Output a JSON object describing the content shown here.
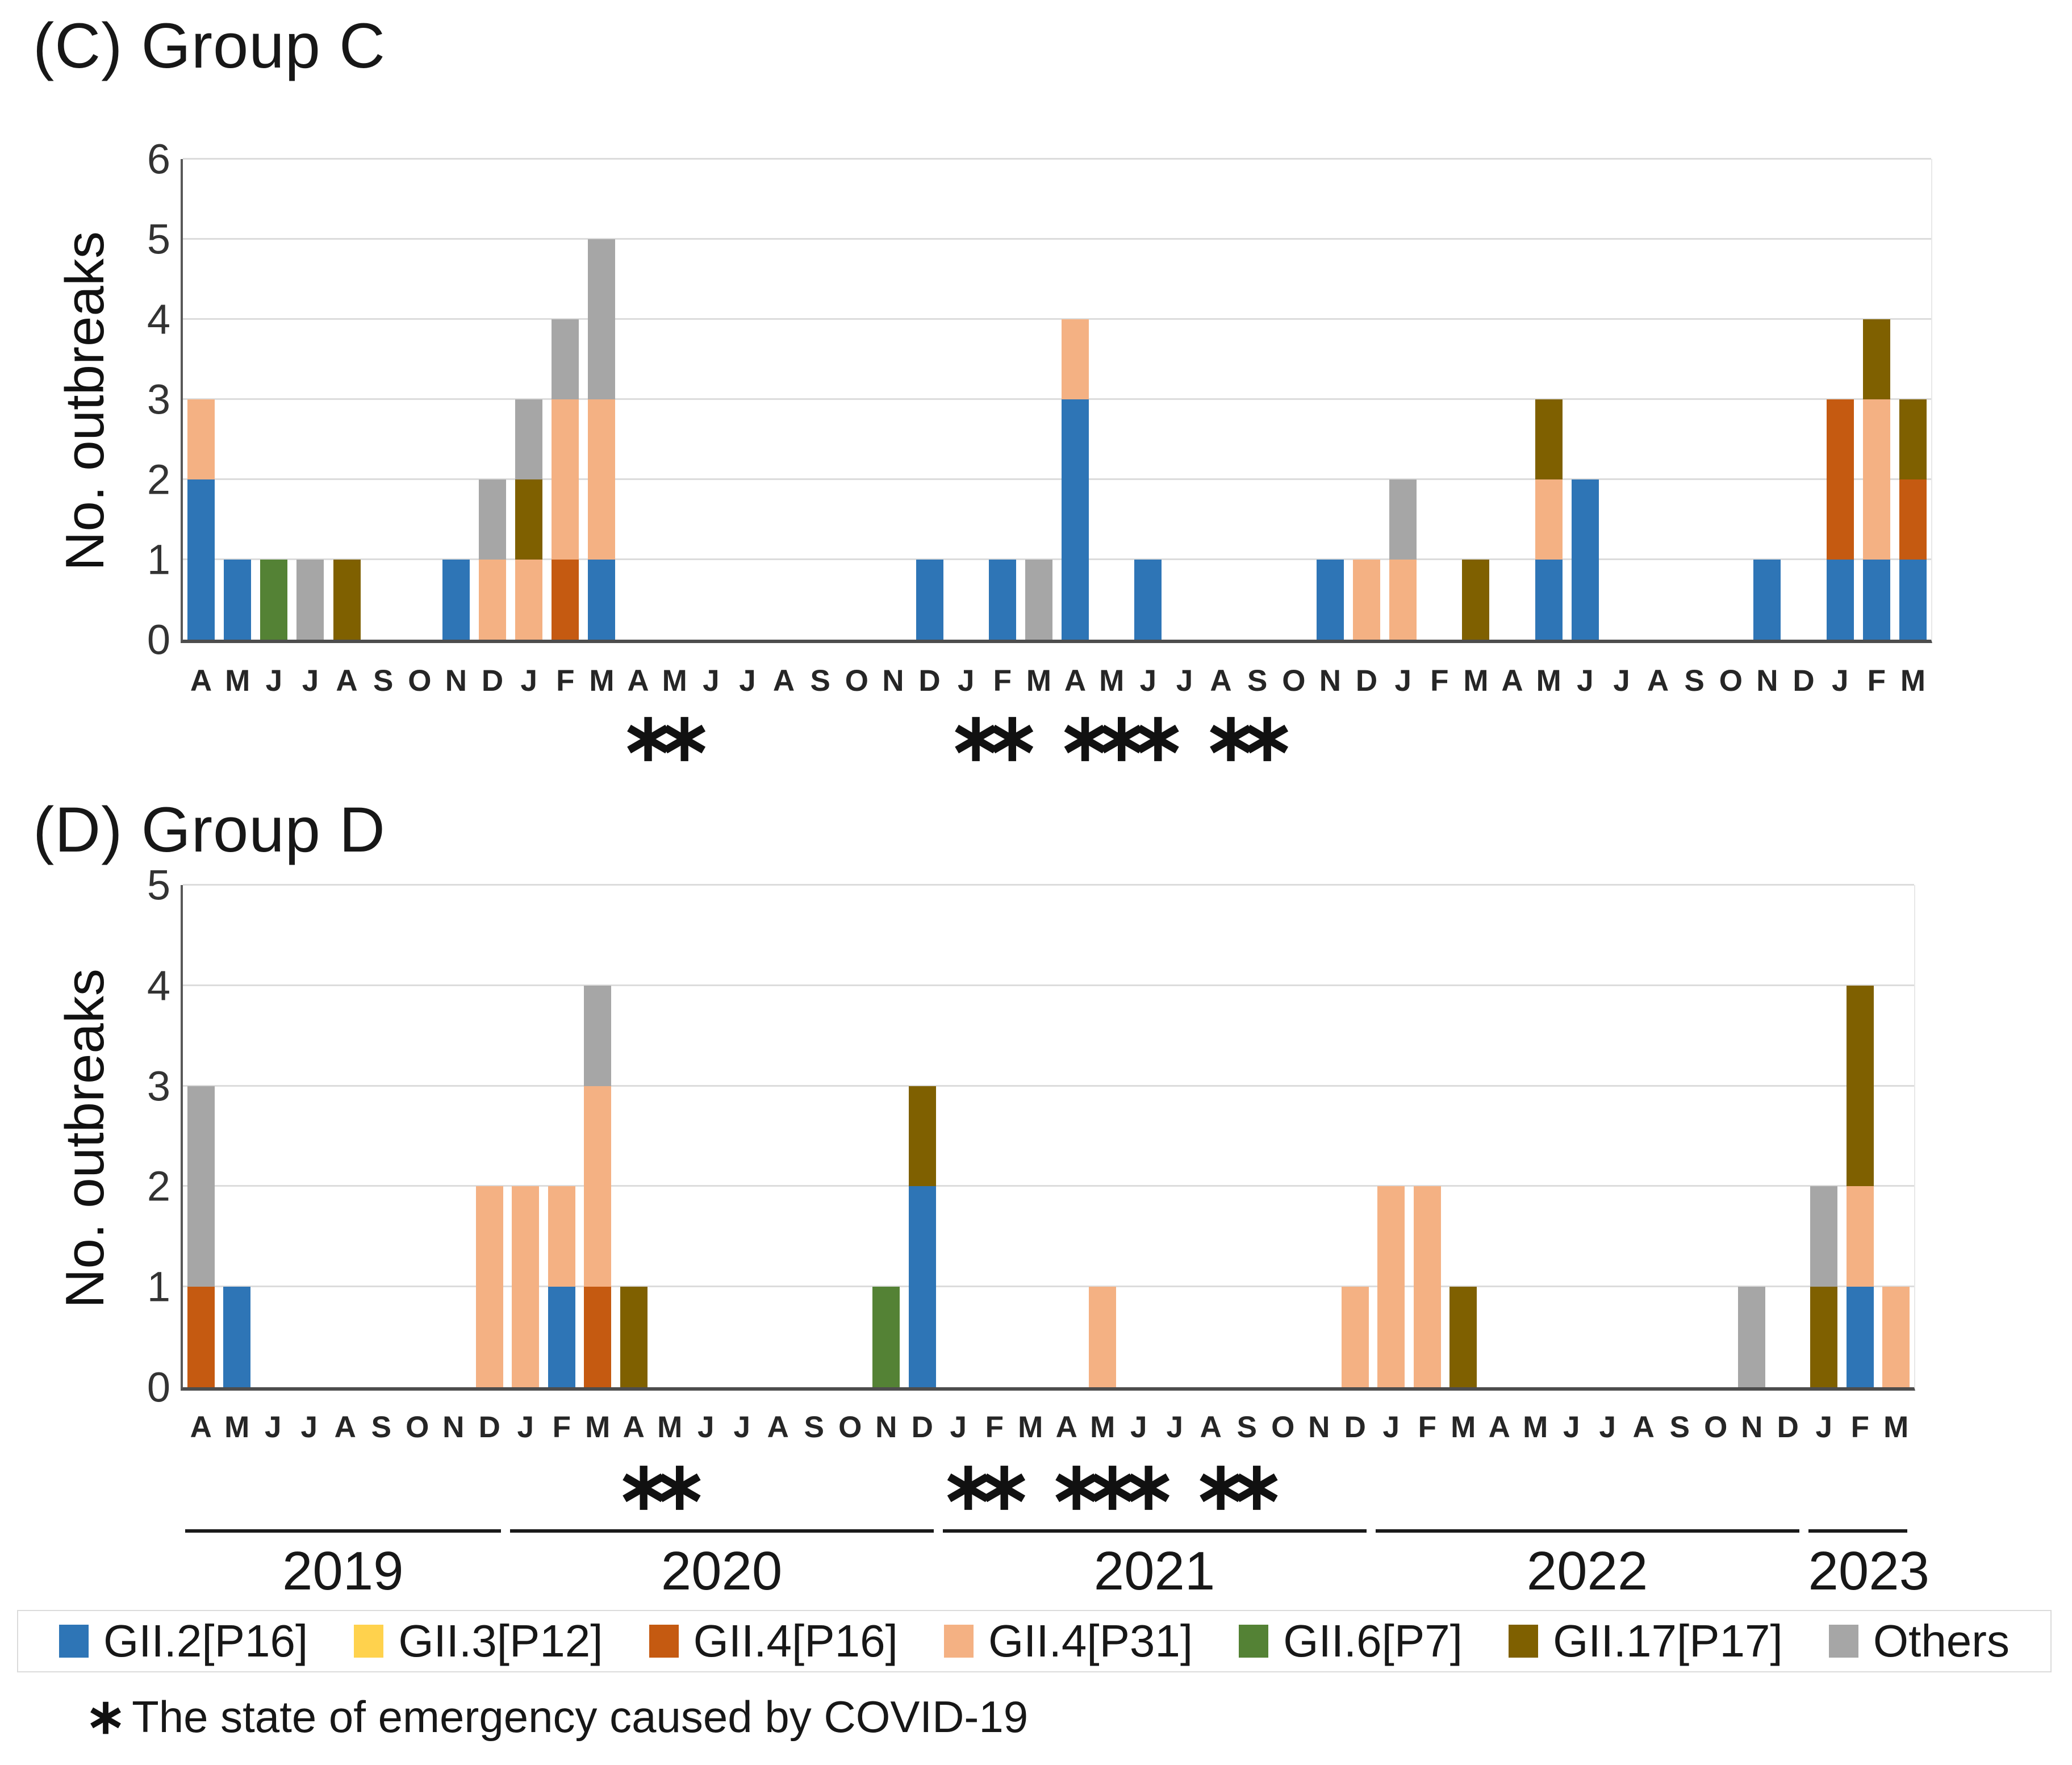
{
  "figure": {
    "background": "#FFFFFF"
  },
  "asterisk_char": "∗",
  "chart_data": [
    {
      "type": "bar",
      "stacked": true,
      "title": "(C) Group C",
      "ylabel": "No. outbreaks",
      "ylim": [
        0,
        6
      ],
      "yticks": [
        0,
        1,
        2,
        3,
        4,
        5,
        6
      ],
      "grid": true,
      "legend_position": "bottom-shared",
      "categories": [
        "A",
        "M",
        "J",
        "J",
        "A",
        "S",
        "O",
        "N",
        "D",
        "J",
        "F",
        "M",
        "A",
        "M",
        "J",
        "J",
        "A",
        "S",
        "O",
        "N",
        "D",
        "J",
        "F",
        "M",
        "A",
        "M",
        "J",
        "J",
        "A",
        "S",
        "O",
        "N",
        "D",
        "J",
        "F",
        "M",
        "A",
        "M",
        "J",
        "J",
        "A",
        "S",
        "O",
        "N",
        "D",
        "J",
        "F",
        "M"
      ],
      "series": [
        {
          "name": "GII.2[P16]",
          "color": "#2E75B6",
          "values": [
            2,
            1,
            0,
            0,
            0,
            0,
            0,
            1,
            0,
            0,
            0,
            1,
            0,
            0,
            0,
            0,
            0,
            0,
            0,
            0,
            1,
            0,
            1,
            0,
            3,
            0,
            1,
            0,
            0,
            0,
            0,
            1,
            0,
            0,
            0,
            0,
            0,
            1,
            2,
            0,
            0,
            0,
            0,
            1,
            0,
            1,
            1,
            1
          ]
        },
        {
          "name": "GII.3[P12]",
          "color": "#FFD24D",
          "values": [
            0,
            0,
            0,
            0,
            0,
            0,
            0,
            0,
            0,
            0,
            0,
            0,
            0,
            0,
            0,
            0,
            0,
            0,
            0,
            0,
            0,
            0,
            0,
            0,
            0,
            0,
            0,
            0,
            0,
            0,
            0,
            0,
            0,
            0,
            0,
            0,
            0,
            0,
            0,
            0,
            0,
            0,
            0,
            0,
            0,
            0,
            0,
            0
          ]
        },
        {
          "name": "GII.4[P16]",
          "color": "#C55A11",
          "values": [
            0,
            0,
            0,
            0,
            0,
            0,
            0,
            0,
            0,
            0,
            1,
            0,
            0,
            0,
            0,
            0,
            0,
            0,
            0,
            0,
            0,
            0,
            0,
            0,
            0,
            0,
            0,
            0,
            0,
            0,
            0,
            0,
            0,
            0,
            0,
            0,
            0,
            0,
            0,
            0,
            0,
            0,
            0,
            0,
            0,
            2,
            0,
            1
          ]
        },
        {
          "name": "GII.4[P31]",
          "color": "#F4B183",
          "values": [
            1,
            0,
            0,
            0,
            0,
            0,
            0,
            0,
            1,
            1,
            2,
            2,
            0,
            0,
            0,
            0,
            0,
            0,
            0,
            0,
            0,
            0,
            0,
            0,
            1,
            0,
            0,
            0,
            0,
            0,
            0,
            0,
            1,
            1,
            0,
            0,
            0,
            1,
            0,
            0,
            0,
            0,
            0,
            0,
            0,
            0,
            2,
            0
          ]
        },
        {
          "name": "GII.6[P7]",
          "color": "#548235",
          "values": [
            0,
            0,
            1,
            0,
            0,
            0,
            0,
            0,
            0,
            0,
            0,
            0,
            0,
            0,
            0,
            0,
            0,
            0,
            0,
            0,
            0,
            0,
            0,
            0,
            0,
            0,
            0,
            0,
            0,
            0,
            0,
            0,
            0,
            0,
            0,
            0,
            0,
            0,
            0,
            0,
            0,
            0,
            0,
            0,
            0,
            0,
            0,
            0
          ]
        },
        {
          "name": "GII.17[P17]",
          "color": "#7F6000",
          "values": [
            0,
            0,
            0,
            0,
            1,
            0,
            0,
            0,
            0,
            1,
            0,
            0,
            0,
            0,
            0,
            0,
            0,
            0,
            0,
            0,
            0,
            0,
            0,
            0,
            0,
            0,
            0,
            0,
            0,
            0,
            0,
            0,
            0,
            0,
            0,
            1,
            0,
            1,
            0,
            0,
            0,
            0,
            0,
            0,
            0,
            0,
            1,
            1
          ]
        },
        {
          "name": "Others",
          "color": "#A6A6A6",
          "values": [
            0,
            0,
            0,
            1,
            0,
            0,
            0,
            0,
            1,
            1,
            1,
            2,
            0,
            0,
            0,
            0,
            0,
            0,
            0,
            0,
            0,
            0,
            0,
            1,
            0,
            0,
            0,
            0,
            0,
            0,
            0,
            0,
            0,
            1,
            0,
            0,
            0,
            0,
            0,
            0,
            0,
            0,
            0,
            0,
            0,
            0,
            0,
            0
          ]
        }
      ],
      "asterisk_groups": [
        [
          12,
          13
        ],
        [
          21,
          22
        ],
        [
          24,
          25,
          26
        ],
        [
          28,
          29
        ]
      ]
    },
    {
      "type": "bar",
      "stacked": true,
      "title": "(D) Group D",
      "ylabel": "No. outbreaks",
      "ylim": [
        0,
        5
      ],
      "yticks": [
        0,
        1,
        2,
        3,
        4,
        5
      ],
      "grid": true,
      "legend_position": "bottom-shared",
      "categories": [
        "A",
        "M",
        "J",
        "J",
        "A",
        "S",
        "O",
        "N",
        "D",
        "J",
        "F",
        "M",
        "A",
        "M",
        "J",
        "J",
        "A",
        "S",
        "O",
        "N",
        "D",
        "J",
        "F",
        "M",
        "A",
        "M",
        "J",
        "J",
        "A",
        "S",
        "O",
        "N",
        "D",
        "J",
        "F",
        "M",
        "A",
        "M",
        "J",
        "J",
        "A",
        "S",
        "O",
        "N",
        "D",
        "J",
        "F",
        "M"
      ],
      "series": [
        {
          "name": "GII.2[P16]",
          "color": "#2E75B6",
          "values": [
            0,
            1,
            0,
            0,
            0,
            0,
            0,
            0,
            0,
            0,
            1,
            0,
            0,
            0,
            0,
            0,
            0,
            0,
            0,
            0,
            2,
            0,
            0,
            0,
            0,
            0,
            0,
            0,
            0,
            0,
            0,
            0,
            0,
            0,
            0,
            0,
            0,
            0,
            0,
            0,
            0,
            0,
            0,
            0,
            0,
            0,
            1,
            0
          ]
        },
        {
          "name": "GII.3[P12]",
          "color": "#FFD24D",
          "values": [
            0,
            0,
            0,
            0,
            0,
            0,
            0,
            0,
            0,
            0,
            0,
            0,
            0,
            0,
            0,
            0,
            0,
            0,
            0,
            0,
            0,
            0,
            0,
            0,
            0,
            0,
            0,
            0,
            0,
            0,
            0,
            0,
            0,
            0,
            0,
            0,
            0,
            0,
            0,
            0,
            0,
            0,
            0,
            0,
            0,
            0,
            0,
            0
          ]
        },
        {
          "name": "GII.4[P16]",
          "color": "#C55A11",
          "values": [
            1,
            0,
            0,
            0,
            0,
            0,
            0,
            0,
            0,
            0,
            0,
            1,
            0,
            0,
            0,
            0,
            0,
            0,
            0,
            0,
            0,
            0,
            0,
            0,
            0,
            0,
            0,
            0,
            0,
            0,
            0,
            0,
            0,
            0,
            0,
            0,
            0,
            0,
            0,
            0,
            0,
            0,
            0,
            0,
            0,
            0,
            0,
            0
          ]
        },
        {
          "name": "GII.4[P31]",
          "color": "#F4B183",
          "values": [
            0,
            0,
            0,
            0,
            0,
            0,
            0,
            0,
            2,
            2,
            1,
            2,
            0,
            0,
            0,
            0,
            0,
            0,
            0,
            0,
            0,
            0,
            0,
            0,
            0,
            1,
            0,
            0,
            0,
            0,
            0,
            0,
            1,
            2,
            2,
            0,
            0,
            0,
            0,
            0,
            0,
            0,
            0,
            0,
            0,
            0,
            1,
            1
          ]
        },
        {
          "name": "GII.6[P7]",
          "color": "#548235",
          "values": [
            0,
            0,
            0,
            0,
            0,
            0,
            0,
            0,
            0,
            0,
            0,
            0,
            0,
            0,
            0,
            0,
            0,
            0,
            0,
            1,
            0,
            0,
            0,
            0,
            0,
            0,
            0,
            0,
            0,
            0,
            0,
            0,
            0,
            0,
            0,
            0,
            0,
            0,
            0,
            0,
            0,
            0,
            0,
            0,
            0,
            0,
            0,
            0
          ]
        },
        {
          "name": "GII.17[P17]",
          "color": "#7F6000",
          "values": [
            0,
            0,
            0,
            0,
            0,
            0,
            0,
            0,
            0,
            0,
            0,
            0,
            1,
            0,
            0,
            0,
            0,
            0,
            0,
            0,
            1,
            0,
            0,
            0,
            0,
            0,
            0,
            0,
            0,
            0,
            0,
            0,
            0,
            0,
            0,
            1,
            0,
            0,
            0,
            0,
            0,
            0,
            0,
            0,
            0,
            1,
            2,
            0
          ]
        },
        {
          "name": "Others",
          "color": "#A6A6A6",
          "values": [
            2,
            0,
            0,
            0,
            0,
            0,
            0,
            0,
            0,
            0,
            0,
            1,
            0,
            0,
            0,
            0,
            0,
            0,
            0,
            0,
            0,
            0,
            0,
            0,
            0,
            0,
            0,
            0,
            0,
            0,
            0,
            0,
            0,
            0,
            0,
            0,
            0,
            0,
            0,
            0,
            0,
            0,
            0,
            1,
            0,
            1,
            0,
            0
          ]
        }
      ],
      "asterisk_groups": [
        [
          12,
          13
        ],
        [
          21,
          22
        ],
        [
          24,
          25,
          26
        ],
        [
          28,
          29
        ]
      ],
      "year_axis": [
        {
          "label": "2019",
          "from": 0,
          "to": 8
        },
        {
          "label": "2020",
          "from": 9,
          "to": 20
        },
        {
          "label": "2021",
          "from": 21,
          "to": 32
        },
        {
          "label": "2022",
          "from": 33,
          "to": 44
        },
        {
          "label": "2023",
          "from": 45,
          "to": 47
        }
      ]
    }
  ],
  "legend": {
    "items": [
      {
        "label": "GII.2[P16]",
        "color": "#2E75B6"
      },
      {
        "label": "GII.3[P12]",
        "color": "#FFD24D"
      },
      {
        "label": "GII.4[P16]",
        "color": "#C55A11"
      },
      {
        "label": "GII.4[P31]",
        "color": "#F4B183"
      },
      {
        "label": "GII.6[P7]",
        "color": "#548235"
      },
      {
        "label": "GII.17[P17]",
        "color": "#7F6000"
      },
      {
        "label": "Others",
        "color": "#A6A6A6"
      }
    ]
  },
  "footnote": {
    "marker": "∗",
    "text": "The state of emergency caused by COVID-19"
  }
}
